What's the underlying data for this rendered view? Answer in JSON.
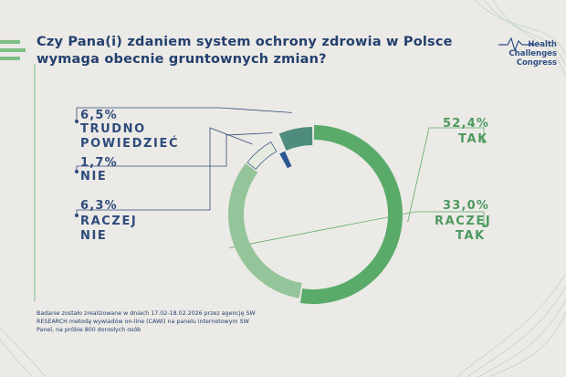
{
  "title": "Czy Pana(i) zdaniem system ochrony zdrowia w Polsce wymaga obecnie gruntownych zmian?",
  "logo": {
    "line1": "Health",
    "line2": "Challenges",
    "line3": "Congress"
  },
  "footnote": "Badanie zostało zrealizowane w dniach 17.02-18.02.2026 przez agencję SW RESEARCH metodą wywiadów on-line (CAWI) na panelu internetowym SW Panel, na próbie 800 dorosłych osób",
  "labels": {
    "tak": {
      "pct": "52,4%",
      "line1": "TAK"
    },
    "raczej_tak": {
      "pct": "33,0%",
      "line1": "RACZEJ",
      "line2": "TAK"
    },
    "trudno": {
      "pct": "6,5%",
      "line1": "TRUDNO",
      "line2": "POWIEDZIEĆ"
    },
    "nie": {
      "pct": "1,7%",
      "line1": "NIE"
    },
    "raczej_nie": {
      "pct": "6,3%",
      "line1": "RACZEJ",
      "line2": "NIE"
    }
  },
  "colors": {
    "tak": "#5aab6a",
    "raczej_tak": "#94c59a",
    "trudno": "#4e8d7e",
    "nie": "#2b5591",
    "raczej_nie": "#e4ece0"
  },
  "chart_data": {
    "type": "pie",
    "categories": [
      "TAK",
      "RACZEJ TAK",
      "RACZEJ NIE",
      "NIE",
      "TRUDNO POWIEDZIEĆ"
    ],
    "values": [
      52.4,
      33.0,
      6.3,
      1.7,
      6.5
    ],
    "title": "Czy Pana(i) zdaniem system ochrony zdrowia w Polsce wymaga obecnie gruntownych zmian?"
  }
}
